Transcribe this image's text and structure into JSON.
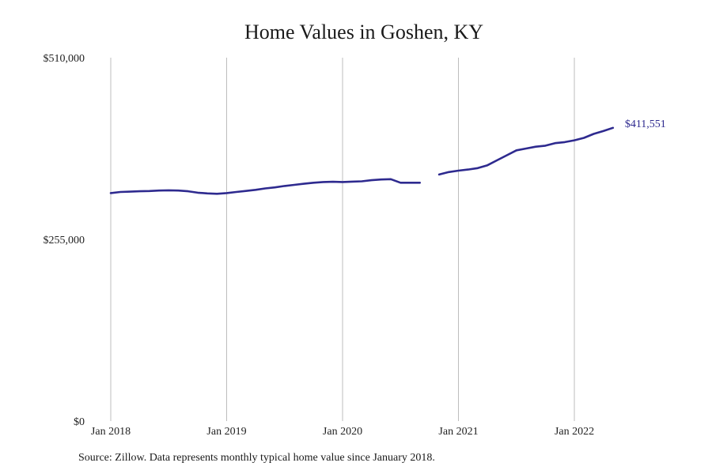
{
  "chart_data": {
    "type": "line",
    "title": "Home Values in Goshen, KY",
    "xlabel": "",
    "ylabel": "",
    "y_ticks": [
      {
        "value": 0,
        "label": "$0"
      },
      {
        "value": 255000,
        "label": "$255,000"
      },
      {
        "value": 510000,
        "label": "$510,000"
      }
    ],
    "x_ticks": [
      {
        "date": "2018-01",
        "label": "Jan 2018"
      },
      {
        "date": "2019-01",
        "label": "Jan 2019"
      },
      {
        "date": "2020-01",
        "label": "Jan 2020"
      },
      {
        "date": "2021-01",
        "label": "Jan 2021"
      },
      {
        "date": "2022-01",
        "label": "Jan 2022"
      }
    ],
    "ylim": [
      0,
      510000
    ],
    "xlim": [
      "2018-01",
      "2022-12"
    ],
    "grid": {
      "x": true,
      "y": false
    },
    "line_color": "#2e2a8f",
    "series": [
      {
        "points": [
          [
            "2018-01",
            320000
          ],
          [
            "2018-02",
            321500
          ],
          [
            "2018-03",
            322000
          ],
          [
            "2018-04",
            322500
          ],
          [
            "2018-05",
            322800
          ],
          [
            "2018-06",
            323500
          ],
          [
            "2018-07",
            323800
          ],
          [
            "2018-08",
            323500
          ],
          [
            "2018-09",
            322500
          ],
          [
            "2018-10",
            320500
          ],
          [
            "2018-11",
            319500
          ],
          [
            "2018-12",
            319000
          ],
          [
            "2019-01",
            320000
          ],
          [
            "2019-02",
            321500
          ],
          [
            "2019-03",
            323000
          ],
          [
            "2019-04",
            324500
          ],
          [
            "2019-05",
            326500
          ],
          [
            "2019-06",
            328000
          ],
          [
            "2019-07",
            330000
          ],
          [
            "2019-08",
            331500
          ],
          [
            "2019-09",
            333000
          ],
          [
            "2019-10",
            334500
          ],
          [
            "2019-11",
            335500
          ],
          [
            "2019-12",
            335800
          ],
          [
            "2020-01",
            335500
          ],
          [
            "2020-02",
            336000
          ],
          [
            "2020-03",
            336500
          ],
          [
            "2020-04",
            338000
          ],
          [
            "2020-05",
            339000
          ],
          [
            "2020-06",
            339500
          ],
          [
            "2020-07",
            334500
          ],
          [
            "2020-08",
            334500
          ],
          [
            "2020-09",
            334500
          ],
          null,
          [
            "2020-11",
            346000
          ],
          [
            "2020-12",
            349500
          ],
          [
            "2021-01",
            351500
          ],
          [
            "2021-02",
            353000
          ],
          [
            "2021-03",
            355000
          ],
          [
            "2021-04",
            359000
          ],
          [
            "2021-05",
            366000
          ],
          [
            "2021-06",
            373000
          ],
          [
            "2021-07",
            380000
          ],
          [
            "2021-08",
            382500
          ],
          [
            "2021-09",
            385000
          ],
          [
            "2021-10",
            386500
          ],
          [
            "2021-11",
            390000
          ],
          [
            "2021-12",
            391500
          ],
          [
            "2022-01",
            394000
          ],
          [
            "2022-02",
            397500
          ],
          [
            "2022-03",
            403000
          ],
          [
            "2022-04",
            407000
          ],
          [
            "2022-05",
            411551
          ]
        ]
      }
    ],
    "end_label": "$411,551"
  },
  "source_note": "Source: Zillow. Data represents monthly typical home value since January 2018."
}
